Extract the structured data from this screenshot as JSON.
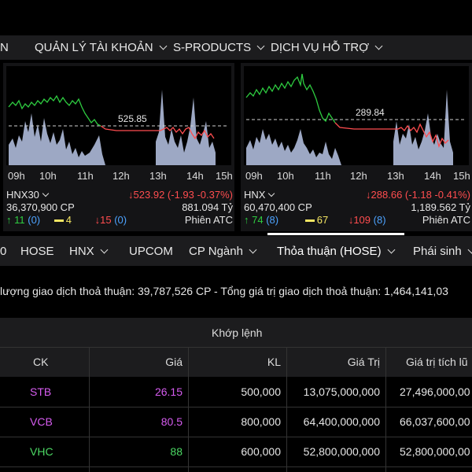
{
  "nav": [
    {
      "label": "N",
      "chevron": false
    },
    {
      "label": "QUẢN LÝ TÀI KHOẢN",
      "chevron": true
    },
    {
      "label": "S-PRODUCTS",
      "chevron": true
    },
    {
      "label": "DỊCH VỤ HỖ TRỢ",
      "chevron": true
    }
  ],
  "panels": [
    {
      "ref_value": "525.85",
      "ticks": [
        "09h",
        "10h",
        "11h",
        "12h",
        "13h",
        "14h",
        "15h"
      ],
      "index_name": "HNX30",
      "index_value": "↓523.92 (-1.93 -0.37%)",
      "volume": "36,370,900 CP",
      "value": "881.094 Tỷ",
      "up": "↑ 11",
      "up_ceiling": "(0)",
      "unchanged": "4",
      "down": "↓15",
      "down_floor": "(0)",
      "session": "Phiên ATC"
    },
    {
      "ref_value": "289.84",
      "ticks": [
        "09h",
        "10h",
        "11h",
        "12h",
        "13h",
        "14h",
        "15h"
      ],
      "index_name": "HNX",
      "index_value": "↓288.66 (-1.18 -0.41%)",
      "volume": "60,470,400 CP",
      "value": "1,189.562 Tỷ",
      "up": "↑ 74",
      "up_ceiling": "(8)",
      "unchanged": "67",
      "down": "↓109",
      "down_floor": "(8)",
      "session": "Phiên ATC"
    }
  ],
  "tabs": [
    {
      "label": "0",
      "chevron": false
    },
    {
      "label": "HOSE",
      "chevron": false
    },
    {
      "label": "HNX",
      "chevron": true
    },
    {
      "label": "UPCOM",
      "chevron": false
    },
    {
      "label": "CP Ngành",
      "chevron": true
    },
    {
      "label": "Thỏa thuận (HOSE)",
      "chevron": true,
      "active": true
    },
    {
      "label": "Phái sinh",
      "chevron": true
    }
  ],
  "summary": "lượng giao dịch thoả thuận: 39,787,526 CP - Tổng giá trị giao dịch thoả thuận: 1,464,141,03",
  "table": {
    "group_header": "Khớp lệnh",
    "columns": [
      "CK",
      "Giá",
      "KL",
      "Giá Trị",
      "Giá trị tích lũ"
    ],
    "rows": [
      {
        "ck": "STB",
        "gia": "26.15",
        "kl": "500,000",
        "gia_tri": "13,075,000,000",
        "tich_luy": "27,496,000,00",
        "color": "#d65cf0"
      },
      {
        "ck": "VCB",
        "gia": "80.5",
        "kl": "800,000",
        "gia_tri": "64,400,000,000",
        "tich_luy": "66,037,600,00",
        "color": "#d65cf0"
      },
      {
        "ck": "VHC",
        "gia": "88",
        "kl": "600,000",
        "gia_tri": "52,800,000,000",
        "tich_luy": "52,800,000,00",
        "color": "#4cd964"
      }
    ]
  },
  "colors": {
    "up": "#2ecc40",
    "down": "#ff4d4f",
    "ref": "#f5e663",
    "ceiling": "#d65cf0"
  }
}
